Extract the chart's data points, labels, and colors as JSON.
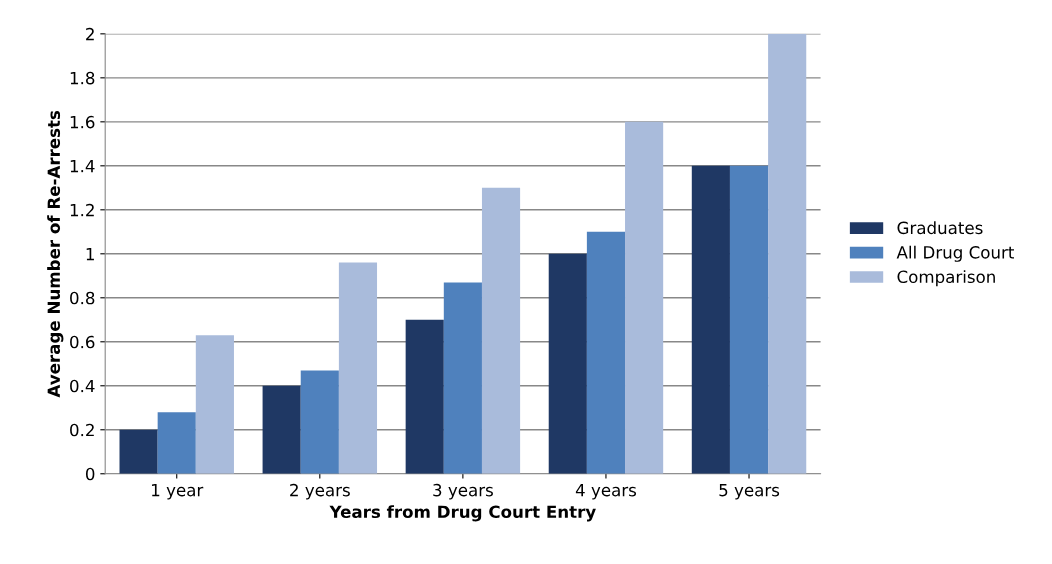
{
  "chart_data": {
    "type": "bar",
    "xlabel": "Years from Drug Court Entry",
    "ylabel": "Average Number of Re-Arrests",
    "categories": [
      "1 year",
      "2 years",
      "3 years",
      "4 years",
      "5 years"
    ],
    "series": [
      {
        "name": "Graduates",
        "color": "#1f3864",
        "values": [
          0.2,
          0.4,
          0.7,
          1.0,
          1.4
        ]
      },
      {
        "name": "All Drug Court",
        "color": "#4f81bd",
        "values": [
          0.28,
          0.47,
          0.87,
          1.1,
          1.4
        ]
      },
      {
        "name": "Comparison",
        "color": "#a9bbdb",
        "values": [
          0.63,
          0.96,
          1.3,
          1.6,
          2.0
        ]
      }
    ],
    "ylim": [
      0,
      2
    ],
    "yticks": [
      0,
      0.2,
      0.4,
      0.6,
      0.8,
      1,
      1.2,
      1.4,
      1.6,
      1.8,
      2
    ],
    "grid": "y",
    "legend": "right"
  }
}
